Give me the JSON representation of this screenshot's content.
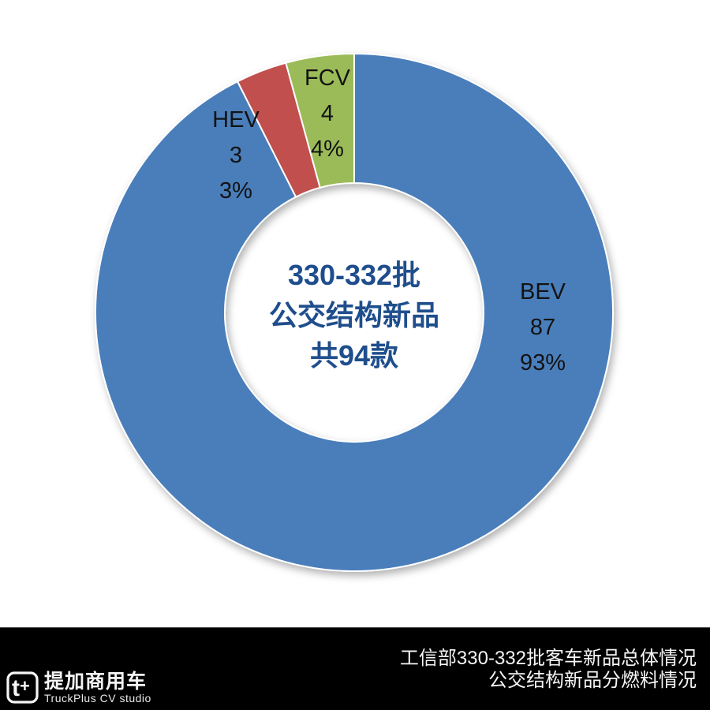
{
  "chart_data": {
    "type": "pie",
    "subtype": "donut",
    "hole_ratio": 0.5,
    "start_angle_deg": 0,
    "direction": "clockwise",
    "categories": [
      "BEV",
      "HEV",
      "FCV"
    ],
    "values": [
      87,
      3,
      4
    ],
    "percent_labels": [
      "93%",
      "3%",
      "4%"
    ],
    "total_units": 94,
    "colors": [
      "#4A7EBB",
      "#C0504D",
      "#9BBB59"
    ],
    "separator_color": "#FFFFFF",
    "center_label": [
      "330-332批",
      "公交结构新品",
      "共94款"
    ],
    "legend": "none",
    "title": "公交结构新品分燃料情况"
  },
  "footer": {
    "title_line1": "工信部330-332批客车新品总体情况",
    "title_line2": "公交结构新品分燃料情况",
    "logo_cn": "提加商用车",
    "logo_en": "TruckPlus CV studio"
  },
  "colors": {
    "slice_blue": "#4A7EBB",
    "slice_red": "#C0504D",
    "slice_green": "#9BBB59",
    "center_text": "#1F4E8C",
    "label_text": "#131313",
    "footer_bg": "#000000",
    "footer_text": "#F5F5F5"
  }
}
